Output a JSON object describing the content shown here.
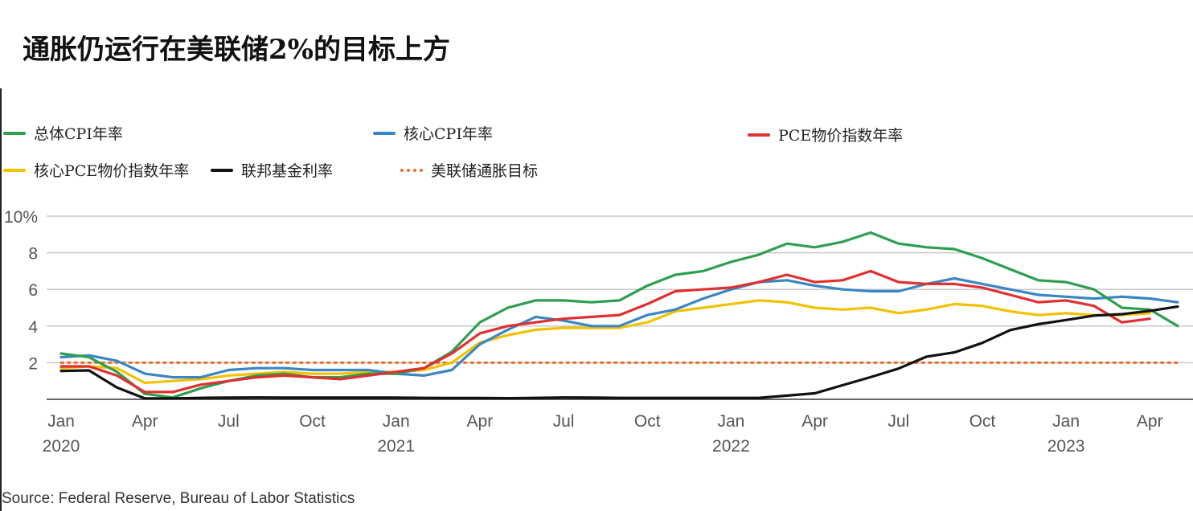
{
  "header": {
    "title": "通胀仍运行在美联储2%的目标上方"
  },
  "footer": {
    "source": "Source: Federal Reserve, Bureau of Labor Statistics"
  },
  "chart_data": {
    "type": "line",
    "title": "通胀仍运行在美联储2%的目标上方",
    "xlabel": "",
    "ylabel": "",
    "ylim": [
      0,
      10
    ],
    "y_ticks": [
      {
        "value": 2,
        "label": "2"
      },
      {
        "value": 4,
        "label": "4"
      },
      {
        "value": 6,
        "label": "6"
      },
      {
        "value": 8,
        "label": "8"
      },
      {
        "value": 10,
        "label": "10%"
      }
    ],
    "x_ticks": [
      {
        "date": "2020-01",
        "label": "Jan",
        "year": "2020"
      },
      {
        "date": "2020-04",
        "label": "Apr"
      },
      {
        "date": "2020-07",
        "label": "Jul"
      },
      {
        "date": "2020-10",
        "label": "Oct"
      },
      {
        "date": "2021-01",
        "label": "Jan",
        "year": "2021"
      },
      {
        "date": "2021-04",
        "label": "Apr"
      },
      {
        "date": "2021-07",
        "label": "Jul"
      },
      {
        "date": "2021-10",
        "label": "Oct"
      },
      {
        "date": "2022-01",
        "label": "Jan",
        "year": "2022"
      },
      {
        "date": "2022-04",
        "label": "Apr"
      },
      {
        "date": "2022-07",
        "label": "Jul"
      },
      {
        "date": "2022-10",
        "label": "Oct"
      },
      {
        "date": "2023-01",
        "label": "Jan",
        "year": "2023"
      },
      {
        "date": "2023-04",
        "label": "Apr"
      }
    ],
    "x": [
      "2020-01",
      "2020-02",
      "2020-03",
      "2020-04",
      "2020-05",
      "2020-06",
      "2020-07",
      "2020-08",
      "2020-09",
      "2020-10",
      "2020-11",
      "2020-12",
      "2021-01",
      "2021-02",
      "2021-03",
      "2021-04",
      "2021-05",
      "2021-06",
      "2021-07",
      "2021-08",
      "2021-09",
      "2021-10",
      "2021-11",
      "2021-12",
      "2022-01",
      "2022-02",
      "2022-03",
      "2022-04",
      "2022-05",
      "2022-06",
      "2022-07",
      "2022-08",
      "2022-09",
      "2022-10",
      "2022-11",
      "2022-12",
      "2023-01",
      "2023-02",
      "2023-03",
      "2023-04",
      "2023-05"
    ],
    "grid": true,
    "legend_position": "top",
    "series": [
      {
        "name": "总体CPI年率",
        "color": "#2e9e4f",
        "style": "solid",
        "values": [
          2.5,
          2.3,
          1.5,
          0.3,
          0.1,
          0.6,
          1.0,
          1.3,
          1.4,
          1.2,
          1.2,
          1.4,
          1.4,
          1.7,
          2.6,
          4.2,
          5.0,
          5.4,
          5.4,
          5.3,
          5.4,
          6.2,
          6.8,
          7.0,
          7.5,
          7.9,
          8.5,
          8.3,
          8.6,
          9.1,
          8.5,
          8.3,
          8.2,
          7.7,
          7.1,
          6.5,
          6.4,
          6.0,
          5.0,
          4.9,
          4.0
        ]
      },
      {
        "name": "核心CPI年率",
        "color": "#3a86c4",
        "style": "solid",
        "values": [
          2.3,
          2.4,
          2.1,
          1.4,
          1.2,
          1.2,
          1.6,
          1.7,
          1.7,
          1.6,
          1.6,
          1.6,
          1.4,
          1.3,
          1.6,
          3.0,
          3.8,
          4.5,
          4.3,
          4.0,
          4.0,
          4.6,
          4.9,
          5.5,
          6.0,
          6.4,
          6.5,
          6.2,
          6.0,
          5.9,
          5.9,
          6.3,
          6.6,
          6.3,
          6.0,
          5.7,
          5.6,
          5.5,
          5.6,
          5.5,
          5.3
        ]
      },
      {
        "name": "PCE物价指数年率",
        "color": "#e03030",
        "style": "solid",
        "values": [
          1.8,
          1.8,
          1.3,
          0.4,
          0.4,
          0.8,
          1.0,
          1.2,
          1.3,
          1.2,
          1.1,
          1.3,
          1.5,
          1.7,
          2.5,
          3.6,
          4.0,
          4.2,
          4.4,
          4.5,
          4.6,
          5.2,
          5.9,
          6.0,
          6.1,
          6.4,
          6.8,
          6.4,
          6.5,
          7.0,
          6.4,
          6.3,
          6.3,
          6.1,
          5.7,
          5.3,
          5.4,
          5.1,
          4.2,
          4.4,
          null
        ]
      },
      {
        "name": "核心PCE物价指数年率",
        "color": "#f2c200",
        "style": "solid",
        "values": [
          1.7,
          1.8,
          1.7,
          0.9,
          1.0,
          1.1,
          1.3,
          1.4,
          1.5,
          1.4,
          1.4,
          1.5,
          1.5,
          1.6,
          2.0,
          3.1,
          3.5,
          3.8,
          3.9,
          3.9,
          3.9,
          4.2,
          4.8,
          5.0,
          5.2,
          5.4,
          5.3,
          5.0,
          4.9,
          5.0,
          4.7,
          4.9,
          5.2,
          5.1,
          4.8,
          4.6,
          4.7,
          4.6,
          4.6,
          4.7,
          null
        ]
      },
      {
        "name": "联邦基金利率",
        "color": "#111111",
        "style": "solid",
        "values": [
          1.55,
          1.58,
          0.65,
          0.05,
          0.05,
          0.08,
          0.09,
          0.1,
          0.09,
          0.09,
          0.09,
          0.09,
          0.09,
          0.08,
          0.07,
          0.07,
          0.06,
          0.08,
          0.1,
          0.09,
          0.08,
          0.08,
          0.08,
          0.08,
          0.08,
          0.08,
          0.2,
          0.33,
          0.77,
          1.21,
          1.68,
          2.33,
          2.56,
          3.08,
          3.78,
          4.1,
          4.33,
          4.57,
          4.65,
          4.83,
          5.06
        ]
      },
      {
        "name": "美联储通胀目标",
        "color": "#e8702a",
        "style": "dotted",
        "values": [
          2,
          2,
          2,
          2,
          2,
          2,
          2,
          2,
          2,
          2,
          2,
          2,
          2,
          2,
          2,
          2,
          2,
          2,
          2,
          2,
          2,
          2,
          2,
          2,
          2,
          2,
          2,
          2,
          2,
          2,
          2,
          2,
          2,
          2,
          2,
          2,
          2,
          2,
          2,
          2,
          2
        ]
      }
    ]
  }
}
